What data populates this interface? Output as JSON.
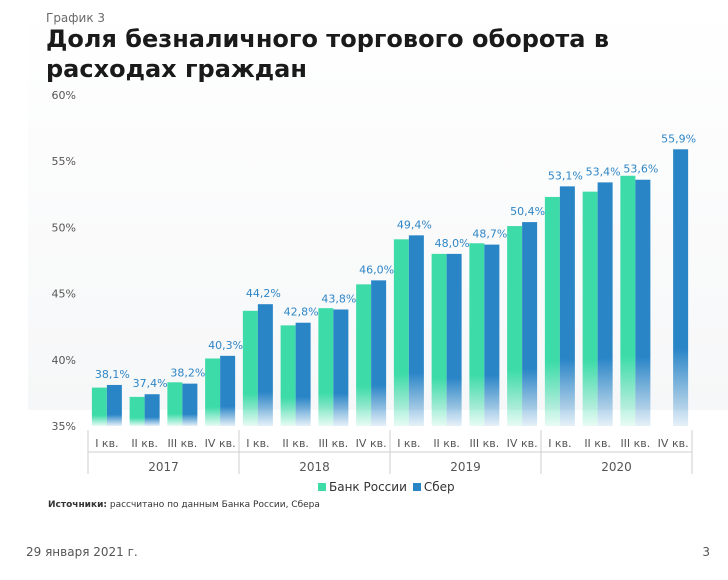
{
  "chart_label": "График 3",
  "title": "Доля безналичного торгового оборота в расходах граждан",
  "legend": {
    "items": [
      {
        "name": "Банк России",
        "color": "#3ddba8"
      },
      {
        "name": "Сбер",
        "color": "#2a85c7"
      }
    ]
  },
  "sources": {
    "label": "Источники:",
    "text": "рассчитано по данным Банка России, Сбера"
  },
  "footer": {
    "date": "29 января 2021 г.",
    "page": "3"
  },
  "chart_data": {
    "type": "bar",
    "ylim": [
      35,
      60
    ],
    "yticks": [
      "35%",
      "40%",
      "45%",
      "50%",
      "55%",
      "60%"
    ],
    "ytick_values": [
      35,
      40,
      45,
      50,
      55,
      60
    ],
    "categories": [
      "I кв.",
      "II кв.",
      "III кв.",
      "IV кв.",
      "I кв.",
      "II кв.",
      "III кв.",
      "IV кв.",
      "I кв.",
      "II кв.",
      "III кв.",
      "IV кв.",
      "I кв.",
      "II кв.",
      "III кв.",
      "IV кв."
    ],
    "groups": [
      "2017",
      "2018",
      "2019",
      "2020"
    ],
    "series": [
      {
        "name": "Банк России",
        "values": [
          37.9,
          37.2,
          38.3,
          40.1,
          43.7,
          42.6,
          43.9,
          45.7,
          49.1,
          48.0,
          48.8,
          50.1,
          52.3,
          52.7,
          53.9,
          null
        ]
      },
      {
        "name": "Сбер",
        "values": [
          38.1,
          37.4,
          38.2,
          40.3,
          44.2,
          42.8,
          43.8,
          46.0,
          49.4,
          48.0,
          48.7,
          50.4,
          53.1,
          53.4,
          53.6,
          55.9
        ]
      }
    ],
    "data_labels": [
      "38,1%",
      "37,4%",
      "38,2%",
      "40,3%",
      "44,2%",
      "42,8%",
      "43,8%",
      "46,0%",
      "49,4%",
      "48,0%",
      "48,7%",
      "50,4%",
      "53,1%",
      "53,4%",
      "53,6%",
      "55,9%"
    ]
  }
}
